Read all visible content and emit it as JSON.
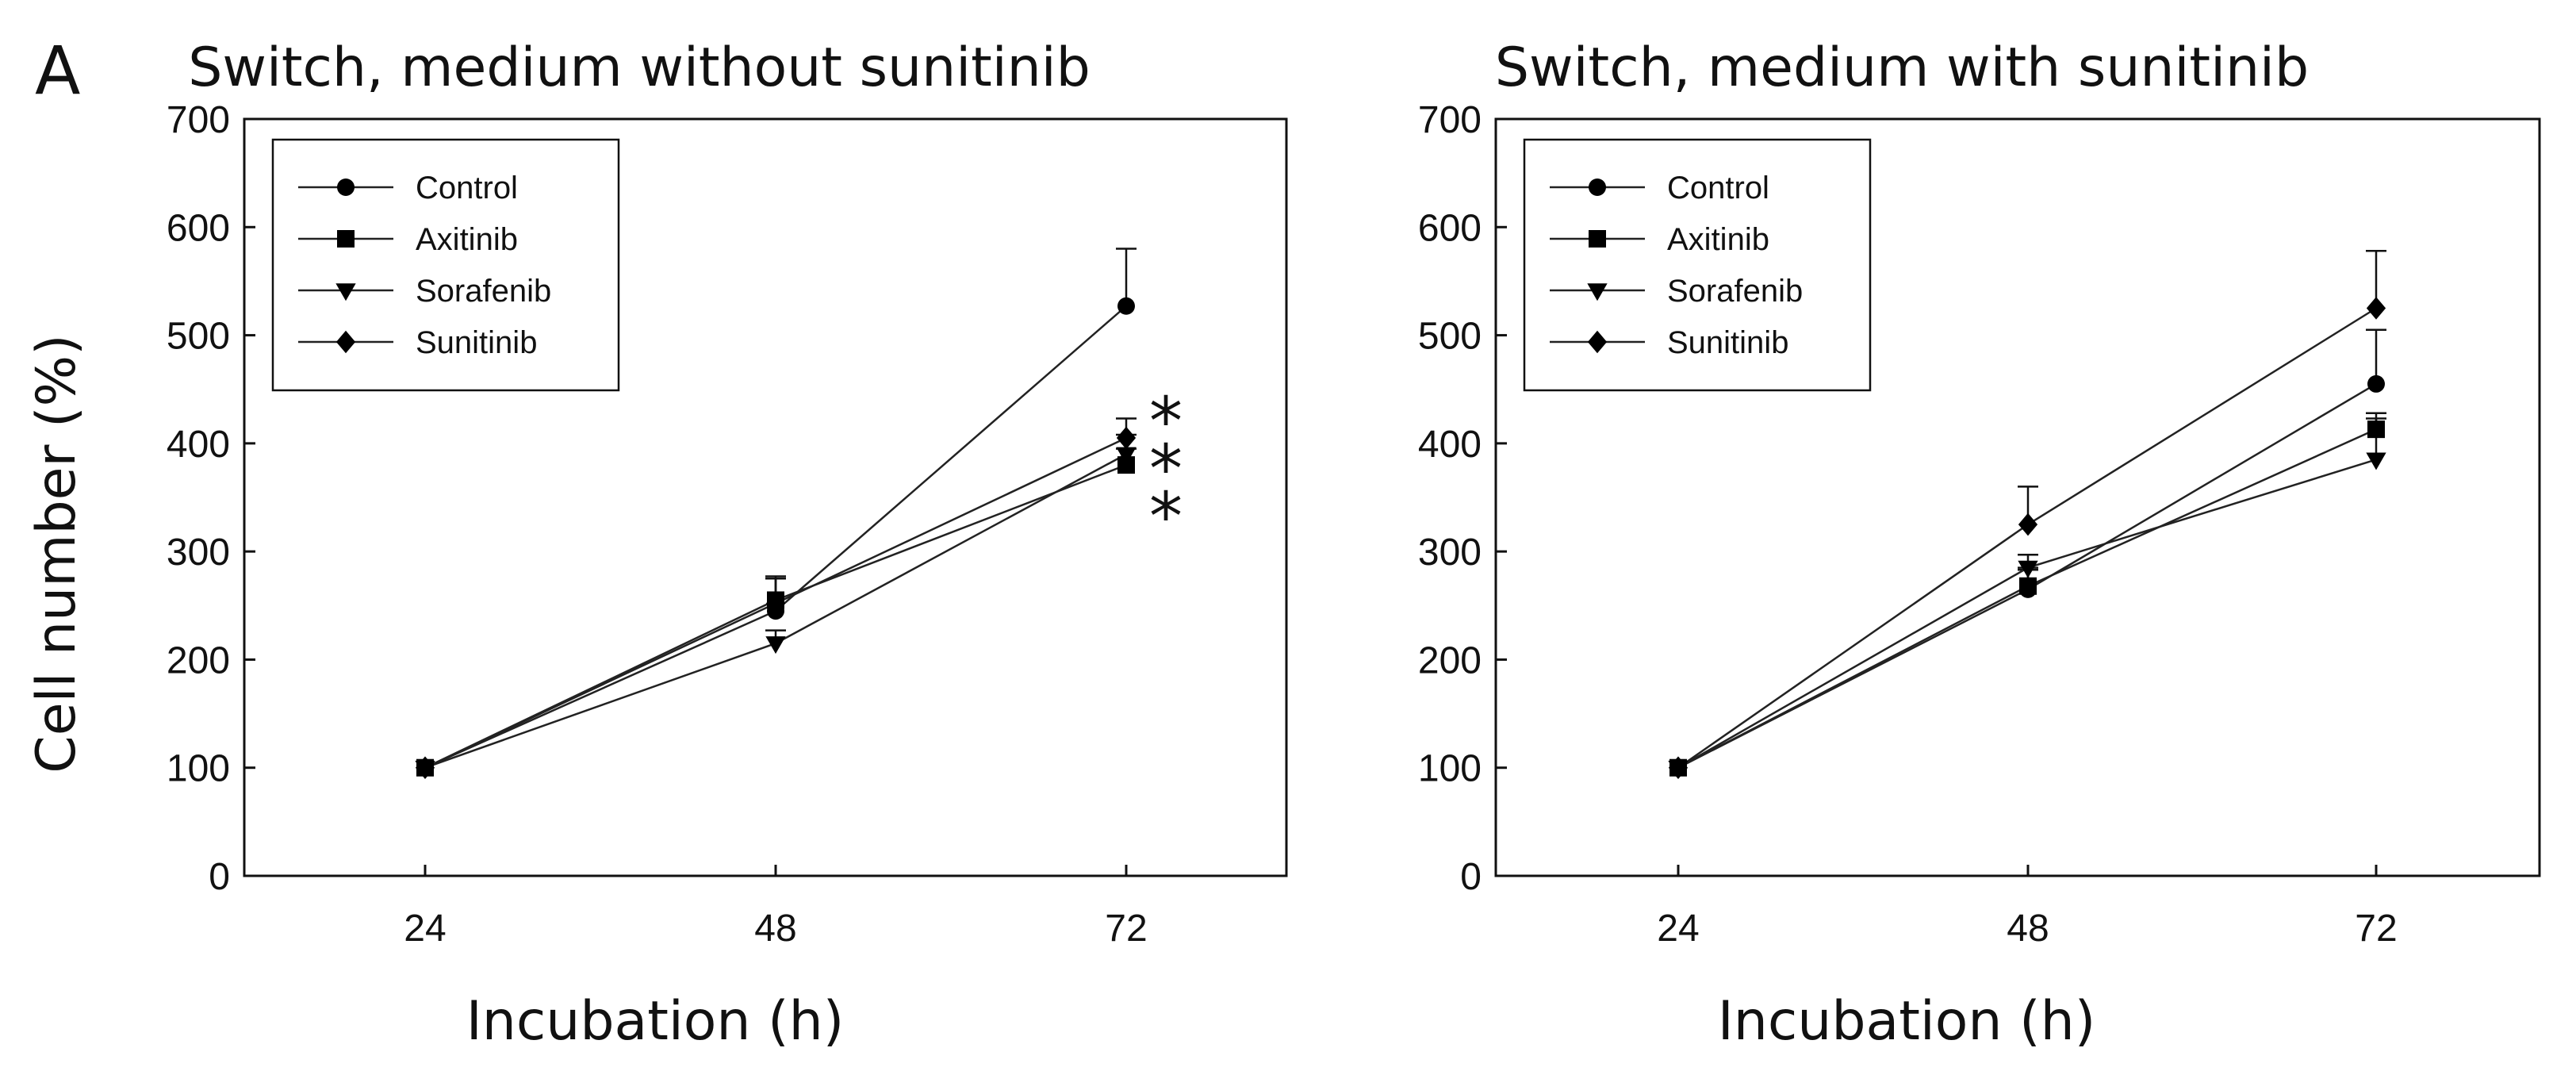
{
  "figure": {
    "panel_letter": "A"
  },
  "chart_data": [
    {
      "type": "line",
      "title": "Switch, medium without sunitinib",
      "xlabel": "Incubation (h)",
      "ylabel": "Cell number (%)",
      "x": [
        24,
        48,
        72
      ],
      "x_tick_labels": [
        "24",
        "48",
        "72"
      ],
      "ylim": [
        0,
        700
      ],
      "y_ticks": [
        0,
        100,
        200,
        300,
        400,
        500,
        600,
        700
      ],
      "y_tick_labels": [
        "0",
        "100",
        "200",
        "300",
        "400",
        "500",
        "600",
        "700"
      ],
      "legend_position": "top-left",
      "grid": false,
      "series": [
        {
          "name": "Control",
          "marker": "circle",
          "values": [
            100,
            245,
            527
          ],
          "errors": [
            0,
            30,
            53
          ]
        },
        {
          "name": "Axitinib",
          "marker": "square",
          "values": [
            100,
            255,
            380
          ],
          "errors": [
            0,
            20,
            15
          ]
        },
        {
          "name": "Sorafenib",
          "marker": "triangle-down",
          "values": [
            100,
            215,
            390
          ],
          "errors": [
            0,
            12,
            18
          ]
        },
        {
          "name": "Sunitinib",
          "marker": "diamond",
          "values": [
            100,
            252,
            405
          ],
          "errors": [
            0,
            25,
            18
          ]
        }
      ],
      "annotations": [
        "*",
        "*",
        "*"
      ]
    },
    {
      "type": "line",
      "title": "Switch, medium with sunitinib",
      "xlabel": "Incubation (h)",
      "ylabel": "",
      "x": [
        24,
        48,
        72
      ],
      "x_tick_labels": [
        "24",
        "48",
        "72"
      ],
      "ylim": [
        0,
        700
      ],
      "y_ticks": [
        0,
        100,
        200,
        300,
        400,
        500,
        600,
        700
      ],
      "y_tick_labels": [
        "0",
        "100",
        "200",
        "300",
        "400",
        "500",
        "600",
        "700"
      ],
      "legend_position": "top-left",
      "grid": false,
      "series": [
        {
          "name": "Control",
          "marker": "circle",
          "values": [
            100,
            265,
            455
          ],
          "errors": [
            0,
            20,
            50
          ]
        },
        {
          "name": "Axitinib",
          "marker": "square",
          "values": [
            100,
            268,
            413
          ],
          "errors": [
            0,
            15,
            15
          ]
        },
        {
          "name": "Sorafenib",
          "marker": "triangle-down",
          "values": [
            100,
            285,
            385
          ],
          "errors": [
            0,
            12,
            38
          ]
        },
        {
          "name": "Sunitinib",
          "marker": "diamond",
          "values": [
            100,
            325,
            525
          ],
          "errors": [
            0,
            35,
            53
          ]
        }
      ],
      "annotations": []
    }
  ]
}
